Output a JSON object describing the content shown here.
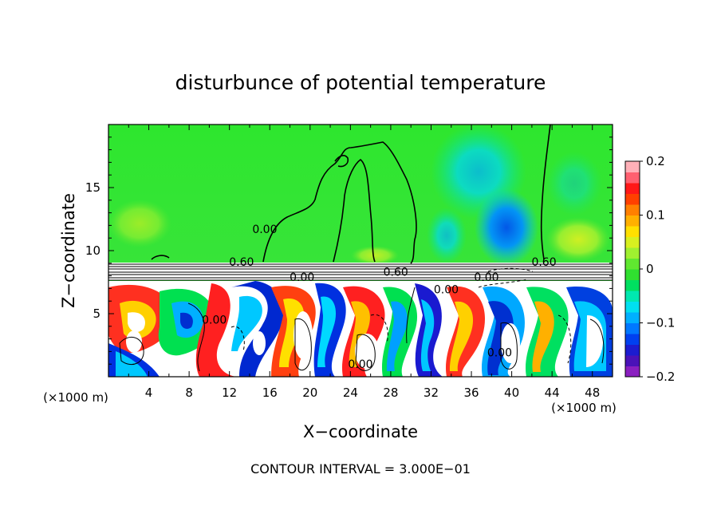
{
  "chart_data": {
    "type": "heatmap",
    "title": "disturbunce of potential temperature",
    "xlabel": "X−coordinate",
    "ylabel": "Z−coordinate",
    "x_unit_left": "(×1000 m)",
    "x_unit_right": "(×1000 m)",
    "xlim": [
      0,
      50
    ],
    "ylim": [
      0,
      20
    ],
    "x_ticks": [
      4,
      8,
      12,
      16,
      20,
      24,
      28,
      32,
      36,
      40,
      44,
      48
    ],
    "x_tick_labels": [
      "4",
      "8",
      "12",
      "16",
      "20",
      "24",
      "28",
      "32",
      "36",
      "40",
      "44",
      "48"
    ],
    "y_ticks": [
      5,
      10,
      15
    ],
    "y_tick_labels": [
      "5",
      "10",
      "15"
    ],
    "colorbar": {
      "range": [
        -0.2,
        0.2
      ],
      "ticks": [
        0.2,
        0.1,
        0,
        -0.1,
        -0.2
      ],
      "tick_labels": [
        "0.2",
        "0.1",
        "0",
        "−0.1",
        "−0.2"
      ],
      "colors": [
        "#8a1fc0",
        "#4a12b8",
        "#1c1cd0",
        "#0040f0",
        "#0078ff",
        "#00b0ff",
        "#00e0f0",
        "#00e8b0",
        "#00e060",
        "#30e030",
        "#60e830",
        "#a0f030",
        "#d8f020",
        "#ffe000",
        "#ffb000",
        "#ff8000",
        "#ff4000",
        "#ff1818",
        "#ff6070",
        "#ffb0b8"
      ]
    },
    "contour_labels": [
      {
        "x": 15.5,
        "z": 11.4,
        "text": "0.00"
      },
      {
        "x": 13.2,
        "z": 8.8,
        "text": "0.60"
      },
      {
        "x": 19.2,
        "z": 7.6,
        "text": "0.00"
      },
      {
        "x": 28.5,
        "z": 8.0,
        "text": "0.60"
      },
      {
        "x": 33.5,
        "z": 6.6,
        "text": "0.00"
      },
      {
        "x": 37.5,
        "z": 7.6,
        "text": "0.00"
      },
      {
        "x": 43.2,
        "z": 8.8,
        "text": "0.60"
      },
      {
        "x": 10.5,
        "z": 4.2,
        "text": "0.00"
      },
      {
        "x": 25.0,
        "z": 0.7,
        "text": "0.00"
      },
      {
        "x": 38.8,
        "z": 1.6,
        "text": "0.00"
      }
    ],
    "contour_interval_text": "CONTOUR INTERVAL =  3.000E−01"
  }
}
